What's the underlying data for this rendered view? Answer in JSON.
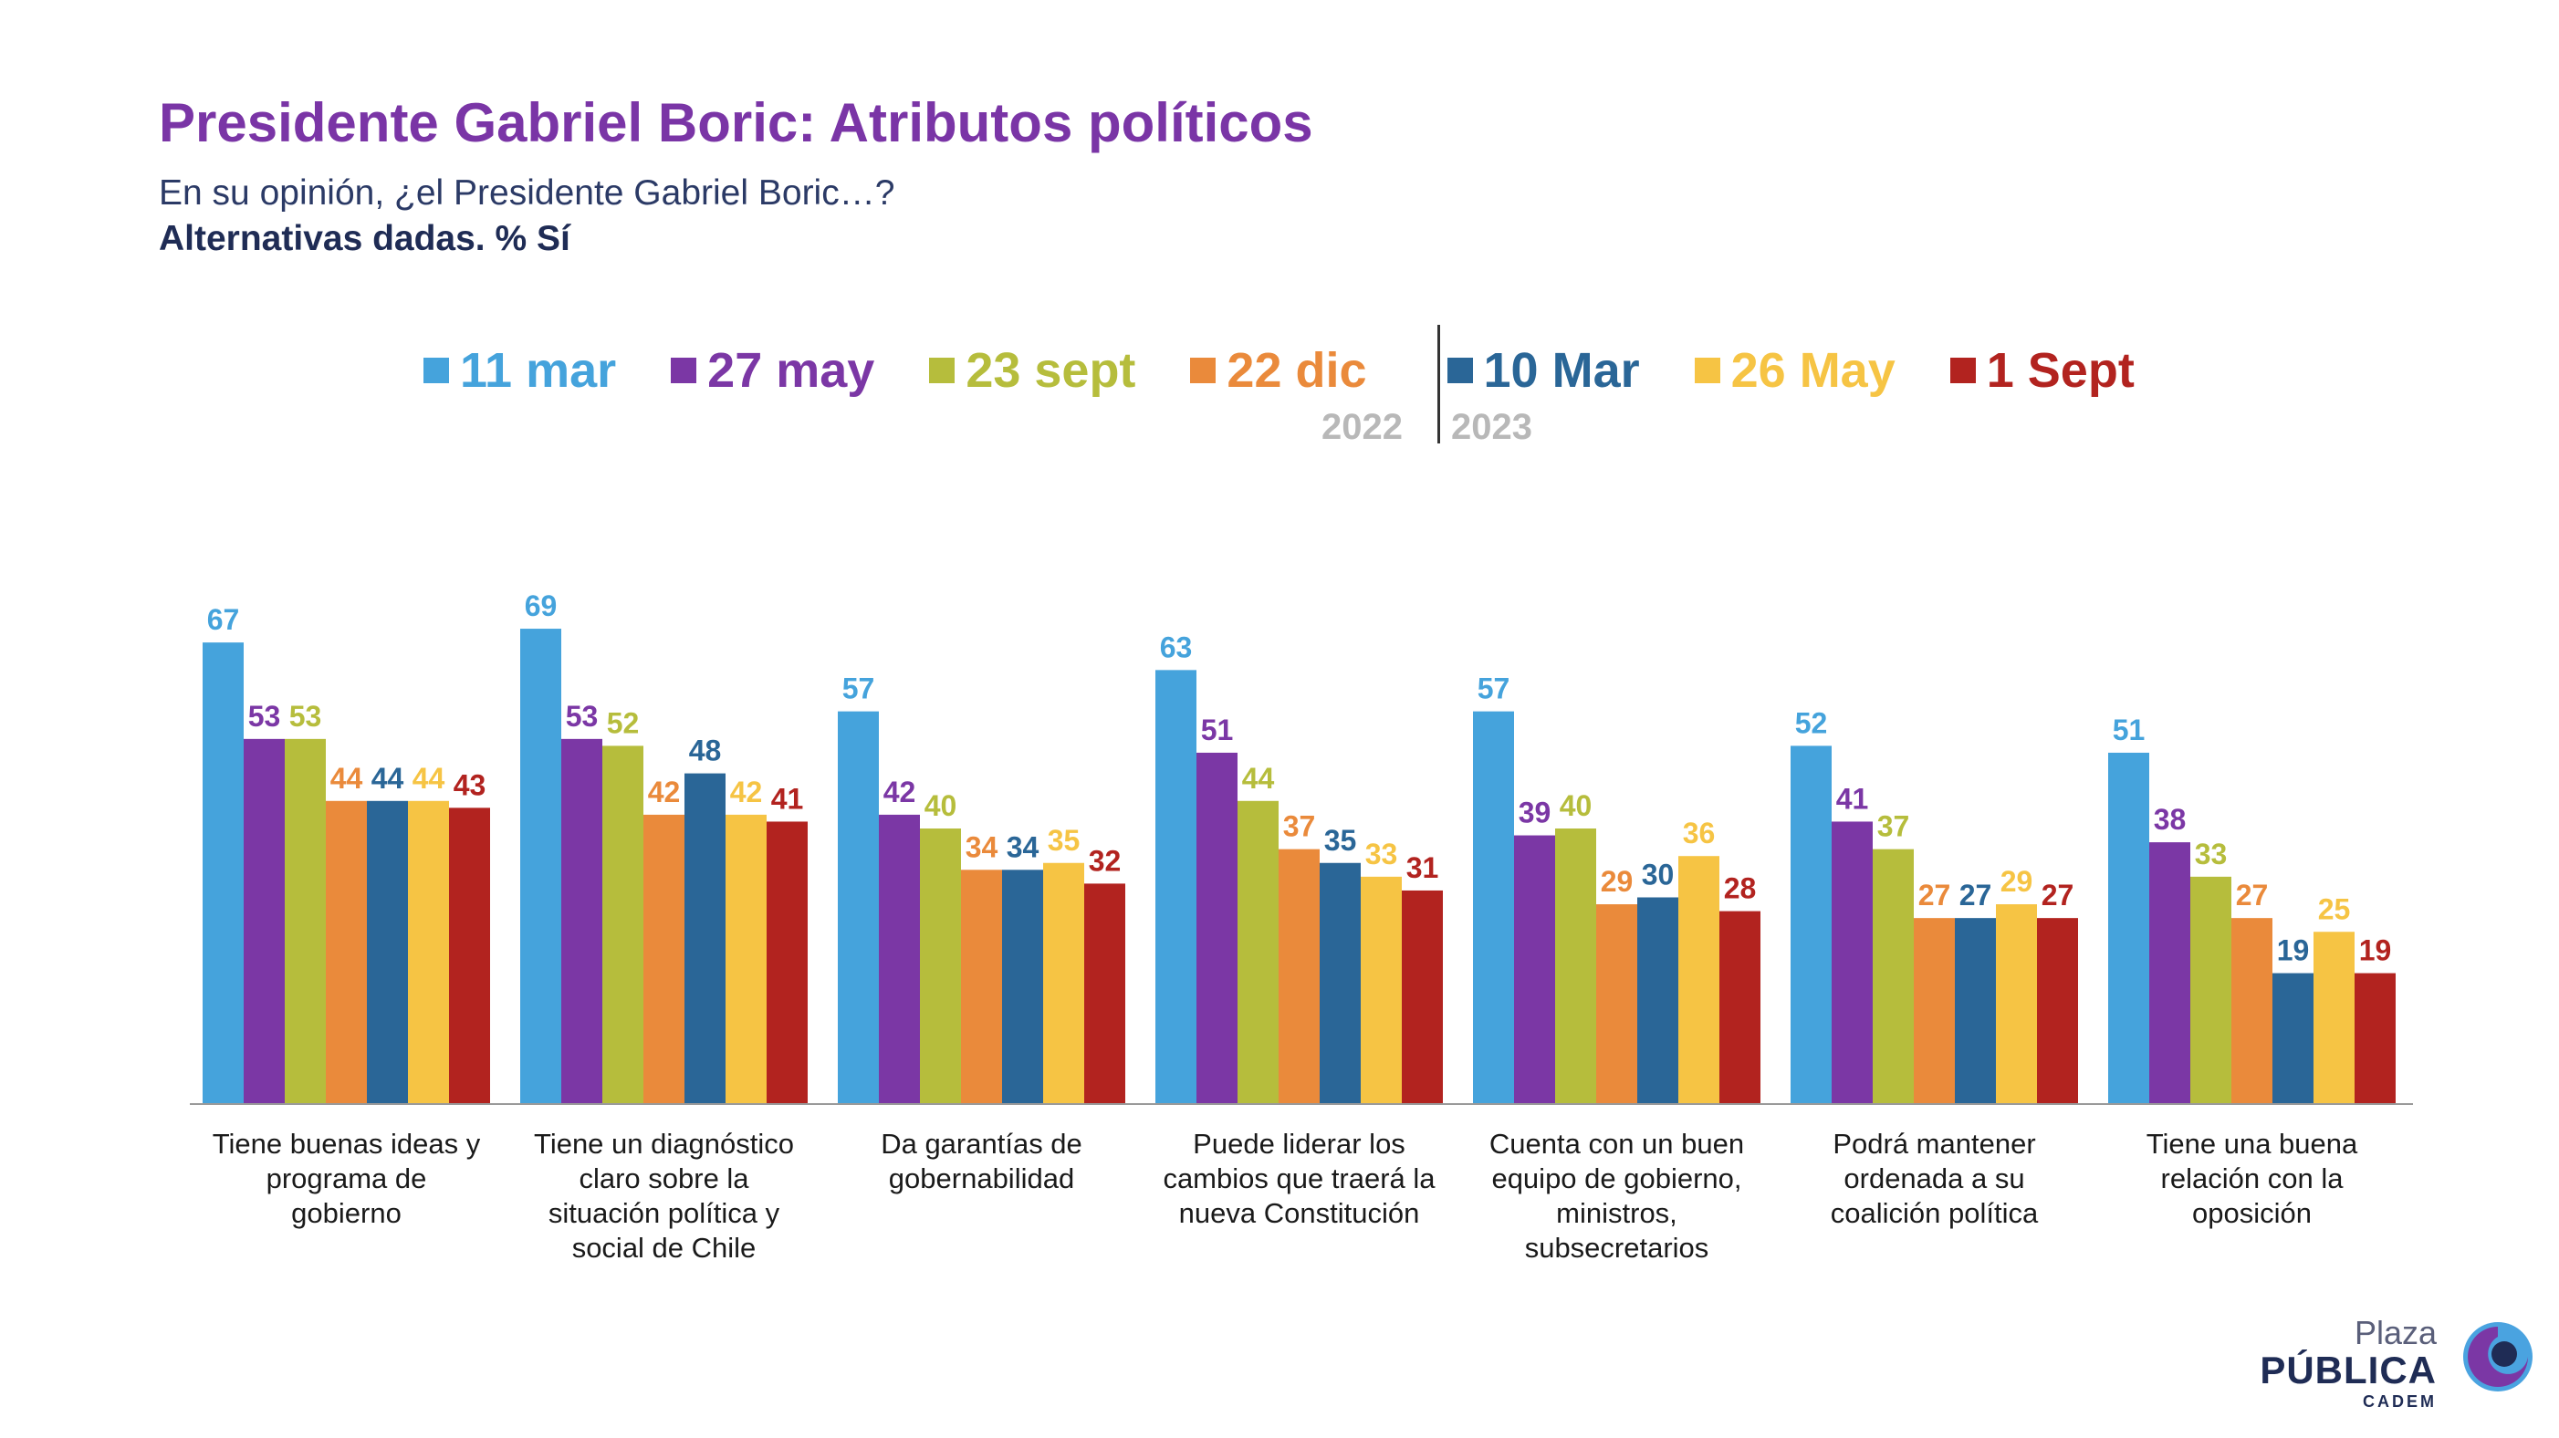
{
  "header": {
    "title": "Presidente Gabriel Boric: Atributos políticos",
    "subtitle": "En su opinión, ¿el Presidente Gabriel Boric…?",
    "note": "Alternativas dadas. % Sí"
  },
  "legend": {
    "year_left": "2022",
    "year_right": "2023"
  },
  "logo": {
    "line1": "Plaza",
    "line2": "PÚBLICA",
    "line3": "CADEM",
    "icon": "plaza-publica-swirl-icon"
  },
  "chart_data": {
    "type": "bar",
    "ylim": [
      0,
      75
    ],
    "grid": false,
    "legend_placement": "top",
    "categories": [
      "Tiene buenas ideas y programa de gobierno",
      "Tiene un diagnóstico claro sobre la situación política y social de Chile",
      "Da garantías de gobernabilidad",
      "Puede liderar los cambios que traerá la nueva Constitución",
      "Cuenta con un buen equipo de gobierno, ministros, subsecretarios",
      "Podrá mantener ordenada a su coalición política",
      "Tiene una buena relación con la oposición"
    ],
    "category_lines": [
      [
        "Tiene buenas ideas y",
        "programa de",
        "gobierno"
      ],
      [
        "Tiene un diagnóstico",
        "claro sobre la",
        "situación política y",
        "social de Chile"
      ],
      [
        "Da garantías de",
        "gobernabilidad"
      ],
      [
        "Puede liderar los",
        "cambios que traerá la",
        "nueva Constitución"
      ],
      [
        "Cuenta con un buen",
        "equipo de gobierno,",
        "ministros,",
        "subsecretarios"
      ],
      [
        "Podrá mantener",
        "ordenada a su",
        "coalición política"
      ],
      [
        "Tiene una buena",
        "relación con la",
        "oposición"
      ]
    ],
    "series": [
      {
        "name": "11 mar",
        "color": "#45a3dc",
        "values": [
          67,
          69,
          57,
          63,
          57,
          52,
          51
        ]
      },
      {
        "name": "27 may",
        "color": "#7b37a5",
        "values": [
          53,
          53,
          42,
          51,
          39,
          41,
          38
        ]
      },
      {
        "name": "23 sept",
        "color": "#b6bd3c",
        "values": [
          53,
          52,
          40,
          44,
          40,
          37,
          33
        ]
      },
      {
        "name": "22 dic",
        "color": "#ea8a3b",
        "values": [
          44,
          42,
          34,
          37,
          29,
          27,
          27
        ]
      },
      {
        "name": "10 Mar",
        "color": "#2a6697",
        "values": [
          44,
          48,
          34,
          35,
          30,
          27,
          19
        ]
      },
      {
        "name": "26 May",
        "color": "#f6c444",
        "values": [
          44,
          42,
          35,
          33,
          36,
          29,
          25
        ]
      },
      {
        "name": "1 Sept",
        "color": "#b2231f",
        "values": [
          43,
          41,
          32,
          31,
          28,
          27,
          19
        ]
      }
    ]
  }
}
